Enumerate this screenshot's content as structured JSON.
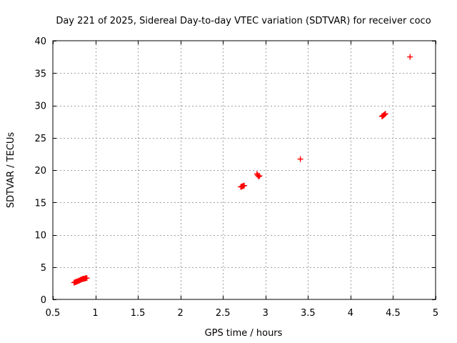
{
  "chart_data": {
    "type": "scatter",
    "title": "Day 221 of 2025, Sidereal Day-to-day VTEC variation (SDTVAR) for receiver coco",
    "xlabel": "GPS time / hours",
    "ylabel": "SDTVAR / TECUs",
    "xlim": [
      0.5,
      5
    ],
    "ylim": [
      0,
      40
    ],
    "xticks": [
      0.5,
      1,
      1.5,
      2,
      2.5,
      3,
      3.5,
      4,
      4.5,
      5
    ],
    "xtick_labels": [
      "0.5",
      "1",
      "1.5",
      "2",
      "2.5",
      "3",
      "3.5",
      "4",
      "4.5",
      "5"
    ],
    "yticks": [
      0,
      5,
      10,
      15,
      20,
      25,
      30,
      35,
      40
    ],
    "ytick_labels": [
      "0",
      "5",
      "10",
      "15",
      "20",
      "25",
      "30",
      "35",
      "40"
    ],
    "grid": true,
    "marker": "+",
    "series": [
      {
        "name": "SDTVAR",
        "color": "#ff0000",
        "x": [
          0.75,
          0.76,
          0.77,
          0.78,
          0.79,
          0.8,
          0.81,
          0.82,
          0.83,
          0.84,
          0.85,
          0.86,
          0.87,
          0.88,
          0.89,
          0.9,
          2.71,
          2.72,
          2.73,
          2.74,
          2.75,
          2.9,
          2.91,
          2.92,
          2.93,
          3.41,
          4.37,
          4.38,
          4.39,
          4.4,
          4.41,
          4.7
        ],
        "y": [
          2.6,
          2.65,
          2.7,
          2.75,
          2.8,
          2.85,
          2.9,
          3.0,
          3.05,
          3.1,
          3.15,
          3.2,
          3.2,
          3.25,
          3.3,
          3.3,
          17.4,
          17.45,
          17.5,
          17.55,
          17.6,
          19.4,
          19.2,
          19.0,
          19.1,
          21.7,
          28.3,
          28.4,
          28.5,
          28.6,
          28.7,
          37.5
        ]
      }
    ]
  }
}
